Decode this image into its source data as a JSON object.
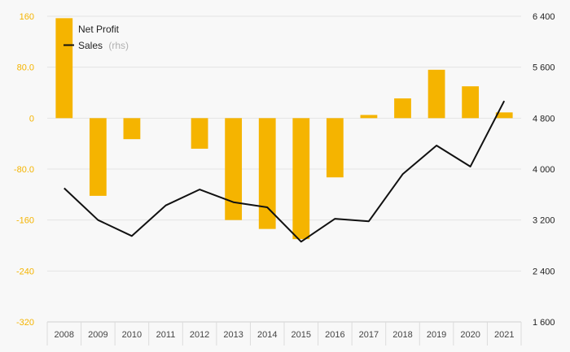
{
  "chart_data": {
    "type": "bar",
    "categories": [
      "2008",
      "2009",
      "2010",
      "2011",
      "2012",
      "2013",
      "2014",
      "2015",
      "2016",
      "2017",
      "2018",
      "2019",
      "2020",
      "2021"
    ],
    "series": [
      {
        "name": "Net Profit",
        "type": "bar",
        "axis": "left",
        "color": "#f5b400",
        "values": [
          157,
          -122,
          -33,
          0,
          -48,
          -160,
          -174,
          -190,
          -93,
          5,
          31,
          76,
          50,
          9
        ]
      },
      {
        "name": "Sales",
        "type": "line",
        "axis": "right",
        "color": "#111111",
        "values": [
          3700,
          3200,
          2950,
          3430,
          3680,
          3480,
          3400,
          2860,
          3220,
          3180,
          3920,
          4370,
          4040,
          5070
        ]
      }
    ],
    "legend": {
      "position": "top-left",
      "entries": [
        {
          "label": "Net Profit",
          "suffix": ""
        },
        {
          "label": "Sales",
          "suffix": "(rhs)"
        }
      ]
    },
    "y_left": {
      "ylim": [
        -320,
        160
      ],
      "ticks": [
        160,
        80,
        0,
        -80,
        -160,
        -240,
        -320
      ],
      "tick_labels": [
        "160",
        "80.0",
        "0",
        "-80.0",
        "-160",
        "-240",
        "-320"
      ],
      "color": "#f5b400"
    },
    "y_right": {
      "ylim": [
        1600,
        6400
      ],
      "ticks": [
        6400,
        5600,
        4800,
        4000,
        3200,
        2400,
        1600
      ],
      "tick_labels": [
        "6 400",
        "5 600",
        "4 800",
        "4 000",
        "3 200",
        "2 400",
        "1 600"
      ]
    },
    "grid": true
  }
}
